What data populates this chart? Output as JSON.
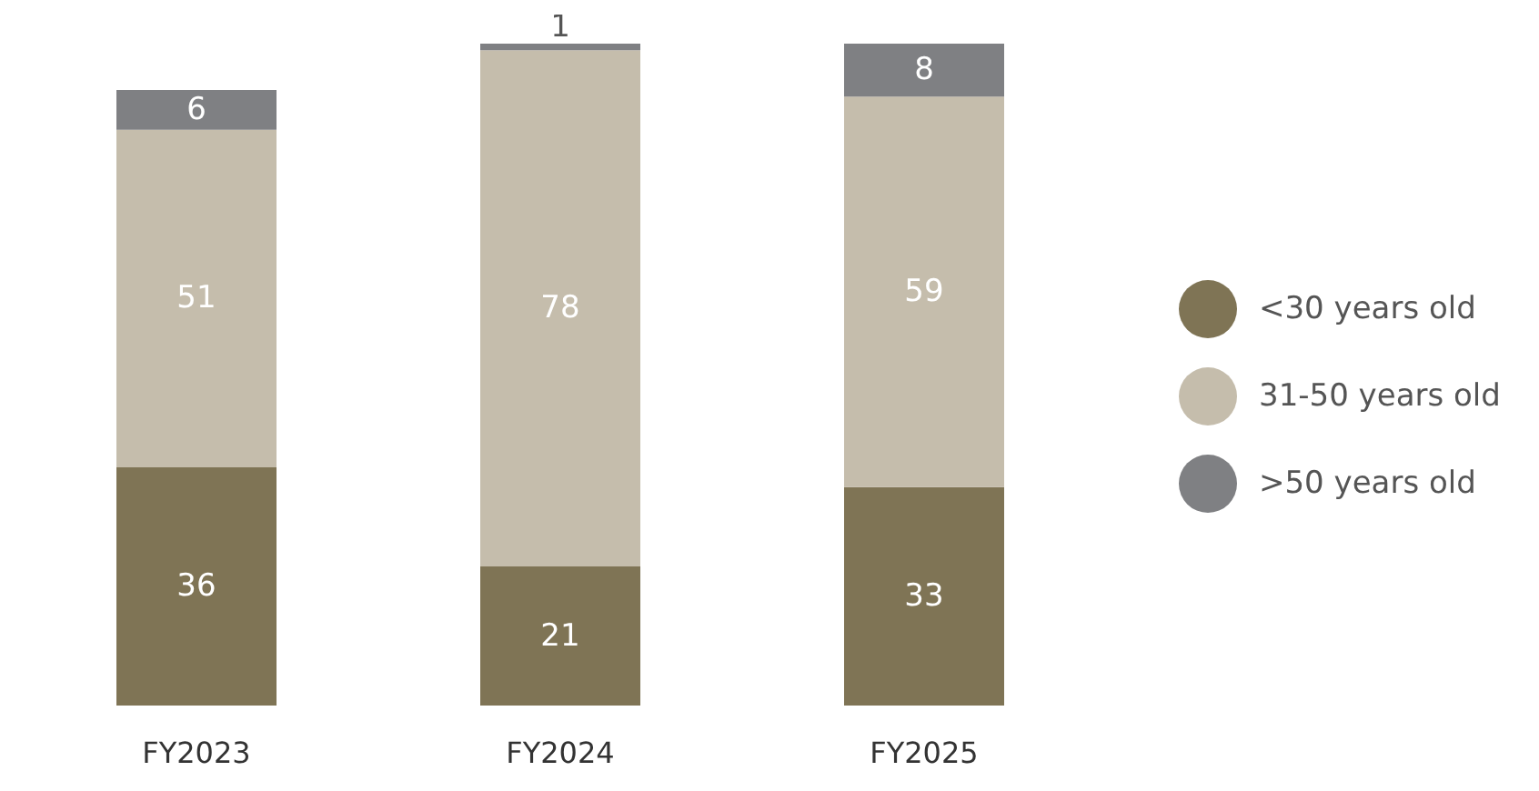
{
  "chart_data": {
    "type": "bar",
    "stacked": true,
    "categories": [
      "FY2023",
      "FY2024",
      "FY2025"
    ],
    "series": [
      {
        "name": "<30 years old",
        "color": "#7f7455",
        "values": [
          36,
          21,
          33
        ]
      },
      {
        "name": "31-50 years old",
        "color": "#c5bdac",
        "values": [
          51,
          78,
          59
        ]
      },
      {
        "name": ">50 years old",
        "color": "#7f8083",
        "values": [
          6,
          1,
          8
        ]
      }
    ],
    "data_labels": true,
    "legend": "right",
    "grid": false
  }
}
